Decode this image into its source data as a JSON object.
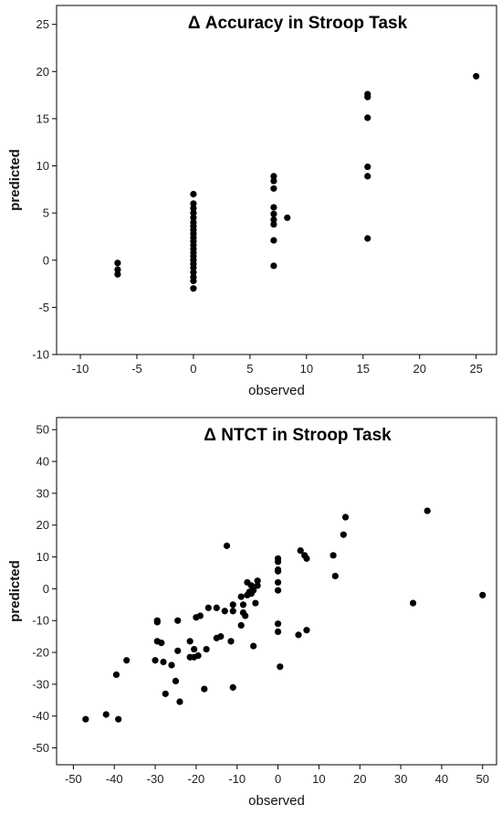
{
  "chart_data": [
    {
      "type": "scatter",
      "title": "Δ Accuracy in Stroop Task",
      "xlabel": "observed",
      "ylabel": "predicted",
      "xlim": [
        -12.1,
        26.8
      ],
      "ylim": [
        -10,
        27
      ],
      "xticks": [
        -10,
        -5,
        0,
        5,
        10,
        15,
        20,
        25
      ],
      "yticks": [
        25,
        20,
        15,
        10,
        5,
        0,
        -5,
        -10
      ],
      "grid": false,
      "points": [
        {
          "x": -6.7,
          "y": -0.3
        },
        {
          "x": -6.7,
          "y": -1.0
        },
        {
          "x": -6.7,
          "y": -1.5
        },
        {
          "x": 0,
          "y": 7.0
        },
        {
          "x": 0,
          "y": 6.0
        },
        {
          "x": 0,
          "y": 5.5
        },
        {
          "x": 0,
          "y": 5.0
        },
        {
          "x": 0,
          "y": 4.5
        },
        {
          "x": 0,
          "y": 4.0
        },
        {
          "x": 0,
          "y": 3.6
        },
        {
          "x": 0,
          "y": 3.2
        },
        {
          "x": 0,
          "y": 2.8
        },
        {
          "x": 0,
          "y": 2.4
        },
        {
          "x": 0,
          "y": 2.0
        },
        {
          "x": 0,
          "y": 1.6
        },
        {
          "x": 0,
          "y": 1.2
        },
        {
          "x": 0,
          "y": 0.8
        },
        {
          "x": 0,
          "y": 0.4
        },
        {
          "x": 0,
          "y": 0.0
        },
        {
          "x": 0,
          "y": -0.4
        },
        {
          "x": 0,
          "y": -0.8
        },
        {
          "x": 0,
          "y": -1.3
        },
        {
          "x": 0,
          "y": -1.8
        },
        {
          "x": 0,
          "y": -2.2
        },
        {
          "x": 0,
          "y": -3.0
        },
        {
          "x": 7.1,
          "y": 8.9
        },
        {
          "x": 7.1,
          "y": 8.4
        },
        {
          "x": 7.1,
          "y": 7.6
        },
        {
          "x": 7.1,
          "y": 5.6
        },
        {
          "x": 7.1,
          "y": 4.9
        },
        {
          "x": 7.1,
          "y": 4.3
        },
        {
          "x": 7.1,
          "y": 3.8
        },
        {
          "x": 7.1,
          "y": 2.1
        },
        {
          "x": 7.1,
          "y": -0.6
        },
        {
          "x": 8.3,
          "y": 4.5
        },
        {
          "x": 15.4,
          "y": 17.6
        },
        {
          "x": 15.4,
          "y": 17.3
        },
        {
          "x": 15.4,
          "y": 15.1
        },
        {
          "x": 15.4,
          "y": 9.9
        },
        {
          "x": 15.4,
          "y": 8.9
        },
        {
          "x": 15.4,
          "y": 2.3
        },
        {
          "x": 25.0,
          "y": 19.5
        }
      ]
    },
    {
      "type": "scatter",
      "title": "Δ NTCT in Stroop Task",
      "xlabel": "observed",
      "ylabel": "predicted",
      "xlim": [
        -54.1,
        53.4
      ],
      "ylim": [
        -55.3,
        53.8
      ],
      "xticks": [
        -50,
        -40,
        -30,
        -20,
        -10,
        0,
        10,
        20,
        30,
        40,
        50
      ],
      "yticks": [
        50,
        40,
        30,
        20,
        10,
        0,
        -10,
        -20,
        -30,
        -40,
        -50
      ],
      "grid": false,
      "points": [
        {
          "x": -47,
          "y": -41
        },
        {
          "x": -42,
          "y": -39.5
        },
        {
          "x": -39,
          "y": -41
        },
        {
          "x": -39.5,
          "y": -27
        },
        {
          "x": -37,
          "y": -22.5
        },
        {
          "x": -30,
          "y": -22.5
        },
        {
          "x": -28,
          "y": -23
        },
        {
          "x": -29.5,
          "y": -16.5
        },
        {
          "x": -28.5,
          "y": -17
        },
        {
          "x": -29.5,
          "y": -10.5
        },
        {
          "x": -29.5,
          "y": -10
        },
        {
          "x": -27.5,
          "y": -33
        },
        {
          "x": -26,
          "y": -24
        },
        {
          "x": -25,
          "y": -29
        },
        {
          "x": -24.5,
          "y": -19.5
        },
        {
          "x": -24.5,
          "y": -10
        },
        {
          "x": -24,
          "y": -35.5
        },
        {
          "x": -21.5,
          "y": -16.5
        },
        {
          "x": -21.5,
          "y": -21.5
        },
        {
          "x": -20.5,
          "y": -19
        },
        {
          "x": -20.5,
          "y": -21.5
        },
        {
          "x": -19.5,
          "y": -21
        },
        {
          "x": -20,
          "y": -9
        },
        {
          "x": -19,
          "y": -8.5
        },
        {
          "x": -18,
          "y": -31.5
        },
        {
          "x": -17.5,
          "y": -19
        },
        {
          "x": -17,
          "y": -6
        },
        {
          "x": -15,
          "y": -6
        },
        {
          "x": -15,
          "y": -15.5
        },
        {
          "x": -14,
          "y": -15
        },
        {
          "x": -13,
          "y": -7
        },
        {
          "x": -12.5,
          "y": 13.5
        },
        {
          "x": -11.5,
          "y": -16.5
        },
        {
          "x": -11,
          "y": -31
        },
        {
          "x": -11,
          "y": -7
        },
        {
          "x": -11,
          "y": -5
        },
        {
          "x": -9,
          "y": -11.5
        },
        {
          "x": -8.5,
          "y": -7.5
        },
        {
          "x": -8,
          "y": -8.5
        },
        {
          "x": -9,
          "y": -2.5
        },
        {
          "x": -8.5,
          "y": -5
        },
        {
          "x": -7.5,
          "y": -2
        },
        {
          "x": -7,
          "y": -1
        },
        {
          "x": -7.5,
          "y": 2
        },
        {
          "x": -6.5,
          "y": -1.5
        },
        {
          "x": -6,
          "y": -0.5
        },
        {
          "x": -6.5,
          "y": 1
        },
        {
          "x": -6,
          "y": -18
        },
        {
          "x": -5.5,
          "y": -4.5
        },
        {
          "x": -5,
          "y": 2.5
        },
        {
          "x": -5,
          "y": 1
        },
        {
          "x": 0,
          "y": 9.5
        },
        {
          "x": 0,
          "y": 8.5
        },
        {
          "x": 0,
          "y": 6
        },
        {
          "x": 0,
          "y": 5.5
        },
        {
          "x": 0,
          "y": 2
        },
        {
          "x": 0,
          "y": -0.5
        },
        {
          "x": 0,
          "y": -11
        },
        {
          "x": 0,
          "y": -13.5
        },
        {
          "x": 0.5,
          "y": -24.5
        },
        {
          "x": 5,
          "y": -14.5
        },
        {
          "x": 5.5,
          "y": 12
        },
        {
          "x": 6.5,
          "y": 10.5
        },
        {
          "x": 7,
          "y": 9.5
        },
        {
          "x": 7,
          "y": -13
        },
        {
          "x": 13.5,
          "y": 10.5
        },
        {
          "x": 14,
          "y": 4
        },
        {
          "x": 16,
          "y": 17
        },
        {
          "x": 16.5,
          "y": 22.5
        },
        {
          "x": 33,
          "y": -4.5
        },
        {
          "x": 36.5,
          "y": 24.5
        },
        {
          "x": 50,
          "y": -2
        }
      ]
    }
  ]
}
